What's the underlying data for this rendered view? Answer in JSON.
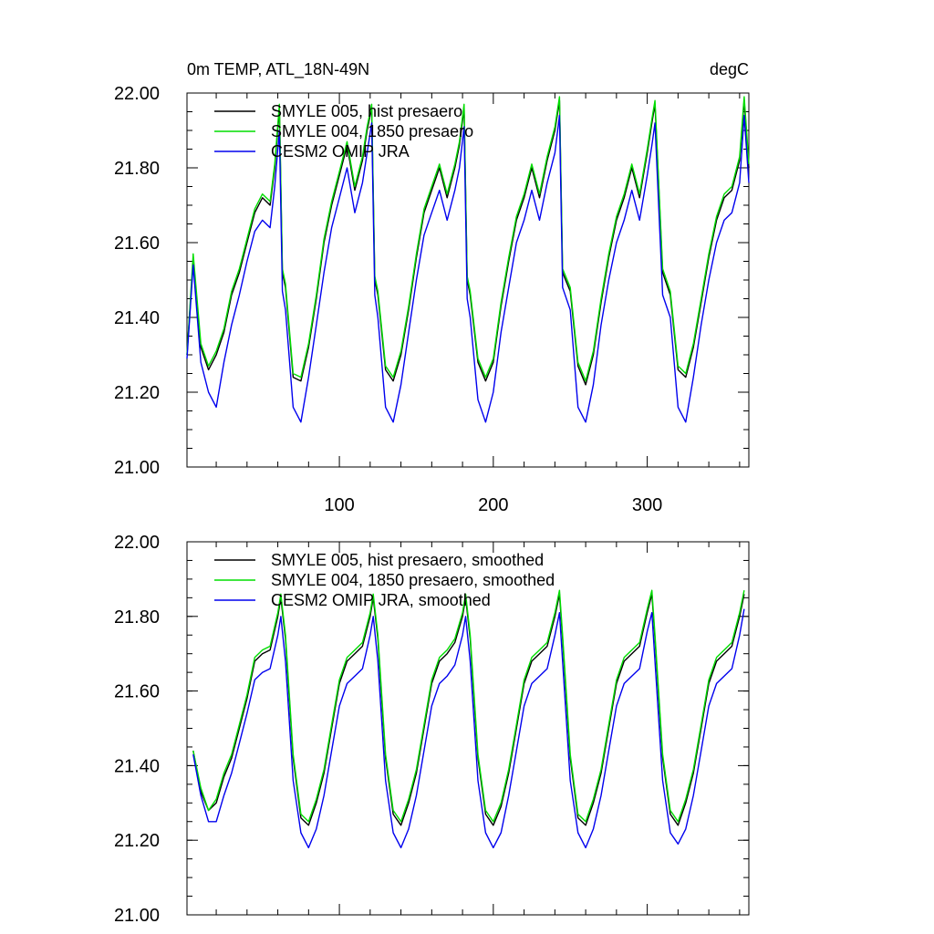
{
  "figure": {
    "title_left": "0m TEMP, ATL_18N-49N",
    "title_right": "degC"
  },
  "chart_data": [
    {
      "type": "line",
      "panel": "top",
      "title": "0m TEMP, ATL_18N-49N",
      "units": "degC",
      "xlim": [
        1,
        366
      ],
      "ylim": [
        21.0,
        22.0
      ],
      "x_ticks": [
        100,
        200,
        300
      ],
      "x_tick_labels": [
        "100",
        "200",
        "300"
      ],
      "y_ticks": [
        21.0,
        21.2,
        21.4,
        21.6,
        21.8,
        22.0
      ],
      "y_tick_labels": [
        "21.00",
        "21.20",
        "21.40",
        "21.60",
        "21.80",
        "22.00"
      ],
      "legend_position": "top-left",
      "x": [
        1,
        5,
        10,
        15,
        20,
        25,
        30,
        35,
        40,
        45,
        50,
        55,
        58,
        61,
        63,
        65,
        70,
        75,
        80,
        85,
        90,
        95,
        100,
        105,
        110,
        115,
        118,
        121,
        123,
        125,
        130,
        135,
        140,
        145,
        150,
        155,
        160,
        165,
        170,
        175,
        178,
        181,
        183,
        185,
        190,
        195,
        200,
        205,
        210,
        215,
        220,
        225,
        230,
        235,
        240,
        243,
        245,
        250,
        255,
        260,
        265,
        270,
        275,
        280,
        285,
        290,
        295,
        300,
        303,
        305,
        310,
        315,
        320,
        325,
        330,
        335,
        340,
        345,
        350,
        355,
        360,
        363,
        366
      ],
      "series": [
        {
          "name": "SMYLE 005, hist presaero",
          "color": "#000000",
          "values": [
            21.3,
            21.55,
            21.32,
            21.26,
            21.3,
            21.36,
            21.46,
            21.52,
            21.6,
            21.68,
            21.72,
            21.7,
            21.8,
            21.96,
            21.52,
            21.48,
            21.24,
            21.23,
            21.32,
            21.45,
            21.6,
            21.7,
            21.78,
            21.86,
            21.74,
            21.82,
            21.9,
            21.96,
            21.5,
            21.46,
            21.26,
            21.23,
            21.3,
            21.42,
            21.56,
            21.68,
            21.74,
            21.8,
            21.72,
            21.8,
            21.86,
            21.96,
            21.5,
            21.46,
            21.28,
            21.23,
            21.28,
            21.43,
            21.55,
            21.66,
            21.72,
            21.8,
            21.72,
            21.82,
            21.9,
            21.98,
            21.52,
            21.47,
            21.27,
            21.22,
            21.3,
            21.44,
            21.56,
            21.66,
            21.72,
            21.8,
            21.72,
            21.84,
            21.92,
            21.97,
            21.52,
            21.46,
            21.26,
            21.24,
            21.32,
            21.44,
            21.56,
            21.66,
            21.72,
            21.74,
            21.82,
            21.98,
            21.8
          ]
        },
        {
          "name": "SMYLE 004, 1850 presaero",
          "color": "#00dd00",
          "values": [
            21.3,
            21.57,
            21.33,
            21.27,
            21.31,
            21.37,
            21.47,
            21.53,
            21.61,
            21.69,
            21.73,
            21.71,
            21.81,
            21.97,
            21.53,
            21.49,
            21.25,
            21.24,
            21.33,
            21.46,
            21.61,
            21.71,
            21.79,
            21.87,
            21.75,
            21.83,
            21.91,
            21.97,
            21.51,
            21.47,
            21.27,
            21.24,
            21.31,
            21.43,
            21.57,
            21.69,
            21.75,
            21.81,
            21.73,
            21.81,
            21.87,
            21.97,
            21.51,
            21.47,
            21.29,
            21.24,
            21.29,
            21.44,
            21.56,
            21.67,
            21.73,
            21.81,
            21.73,
            21.83,
            21.91,
            21.99,
            21.53,
            21.48,
            21.28,
            21.23,
            21.31,
            21.45,
            21.57,
            21.67,
            21.73,
            21.81,
            21.73,
            21.85,
            21.93,
            21.98,
            21.53,
            21.47,
            21.27,
            21.25,
            21.33,
            21.45,
            21.57,
            21.67,
            21.73,
            21.75,
            21.83,
            21.99,
            21.81
          ]
        },
        {
          "name": "CESM2 OMIP JRA",
          "color": "#0000ee",
          "values": [
            21.29,
            21.54,
            21.28,
            21.2,
            21.16,
            21.28,
            21.38,
            21.46,
            21.55,
            21.63,
            21.66,
            21.64,
            21.75,
            21.9,
            21.47,
            21.42,
            21.16,
            21.12,
            21.24,
            21.38,
            21.52,
            21.64,
            21.72,
            21.8,
            21.68,
            21.76,
            21.84,
            21.92,
            21.46,
            21.4,
            21.16,
            21.12,
            21.22,
            21.36,
            21.5,
            21.62,
            21.68,
            21.74,
            21.66,
            21.74,
            21.8,
            21.91,
            21.45,
            21.4,
            21.18,
            21.12,
            21.2,
            21.36,
            21.48,
            21.6,
            21.66,
            21.74,
            21.66,
            21.76,
            21.84,
            21.94,
            21.48,
            21.42,
            21.16,
            21.12,
            21.22,
            21.38,
            21.5,
            21.6,
            21.66,
            21.74,
            21.66,
            21.78,
            21.86,
            21.92,
            21.46,
            21.4,
            21.16,
            21.12,
            21.24,
            21.38,
            21.5,
            21.6,
            21.66,
            21.68,
            21.76,
            21.94,
            21.76
          ]
        }
      ]
    },
    {
      "type": "line",
      "panel": "bottom",
      "xlim": [
        1,
        366
      ],
      "ylim": [
        21.0,
        22.0
      ],
      "y_ticks": [
        21.0,
        21.2,
        21.4,
        21.6,
        21.8,
        22.0
      ],
      "y_tick_labels": [
        "21.00",
        "21.20",
        "21.40",
        "21.60",
        "21.80",
        "22.00"
      ],
      "legend_position": "top-left",
      "x": [
        5,
        10,
        15,
        20,
        25,
        30,
        35,
        40,
        45,
        50,
        55,
        60,
        62,
        65,
        70,
        75,
        80,
        85,
        90,
        95,
        100,
        105,
        110,
        115,
        120,
        122,
        125,
        130,
        135,
        140,
        145,
        150,
        155,
        160,
        165,
        170,
        175,
        180,
        182,
        185,
        190,
        195,
        200,
        205,
        210,
        215,
        220,
        225,
        230,
        235,
        240,
        243,
        245,
        250,
        255,
        260,
        265,
        270,
        275,
        280,
        285,
        290,
        295,
        300,
        303,
        305,
        310,
        315,
        320,
        325,
        330,
        335,
        340,
        345,
        350,
        355,
        360,
        363
      ],
      "series": [
        {
          "name": "SMYLE 005, hist presaero, smoothed",
          "color": "#000000",
          "values": [
            21.44,
            21.33,
            21.28,
            21.3,
            21.37,
            21.42,
            21.5,
            21.58,
            21.68,
            21.7,
            21.71,
            21.8,
            21.85,
            21.74,
            21.42,
            21.26,
            21.24,
            21.3,
            21.38,
            21.5,
            21.62,
            21.68,
            21.7,
            21.72,
            21.8,
            21.85,
            21.74,
            21.42,
            21.27,
            21.24,
            21.3,
            21.38,
            21.5,
            21.62,
            21.68,
            21.7,
            21.73,
            21.8,
            21.85,
            21.74,
            21.42,
            21.27,
            21.24,
            21.29,
            21.38,
            21.5,
            21.62,
            21.68,
            21.7,
            21.72,
            21.8,
            21.86,
            21.74,
            21.42,
            21.26,
            21.24,
            21.3,
            21.38,
            21.5,
            21.62,
            21.68,
            21.7,
            21.72,
            21.81,
            21.86,
            21.74,
            21.42,
            21.27,
            21.24,
            21.3,
            21.38,
            21.5,
            21.62,
            21.68,
            21.7,
            21.72,
            21.8,
            21.86
          ]
        },
        {
          "name": "SMYLE 004, 1850 presaero, smoothed",
          "color": "#00dd00",
          "values": [
            21.44,
            21.34,
            21.28,
            21.31,
            21.38,
            21.43,
            21.51,
            21.59,
            21.69,
            21.71,
            21.72,
            21.81,
            21.86,
            21.75,
            21.43,
            21.27,
            21.25,
            21.31,
            21.39,
            21.51,
            21.63,
            21.69,
            21.71,
            21.73,
            21.81,
            21.86,
            21.75,
            21.43,
            21.28,
            21.25,
            21.31,
            21.39,
            21.51,
            21.63,
            21.69,
            21.71,
            21.74,
            21.81,
            21.86,
            21.75,
            21.43,
            21.28,
            21.25,
            21.3,
            21.39,
            21.51,
            21.63,
            21.69,
            21.71,
            21.73,
            21.81,
            21.87,
            21.75,
            21.43,
            21.27,
            21.25,
            21.31,
            21.39,
            21.51,
            21.63,
            21.69,
            21.71,
            21.73,
            21.82,
            21.87,
            21.75,
            21.43,
            21.28,
            21.25,
            21.31,
            21.39,
            21.51,
            21.63,
            21.69,
            21.71,
            21.73,
            21.81,
            21.87
          ]
        },
        {
          "name": "CESM2 OMIP JRA, smoothed",
          "color": "#0000ee",
          "values": [
            21.43,
            21.32,
            21.25,
            21.25,
            21.32,
            21.38,
            21.46,
            21.54,
            21.63,
            21.65,
            21.66,
            21.75,
            21.8,
            21.68,
            21.36,
            21.22,
            21.18,
            21.23,
            21.32,
            21.44,
            21.56,
            21.62,
            21.64,
            21.66,
            21.75,
            21.8,
            21.68,
            21.36,
            21.22,
            21.18,
            21.23,
            21.32,
            21.44,
            21.56,
            21.62,
            21.64,
            21.67,
            21.75,
            21.8,
            21.68,
            21.36,
            21.22,
            21.18,
            21.22,
            21.32,
            21.44,
            21.56,
            21.62,
            21.64,
            21.66,
            21.75,
            21.81,
            21.68,
            21.36,
            21.22,
            21.18,
            21.23,
            21.32,
            21.44,
            21.56,
            21.62,
            21.64,
            21.66,
            21.76,
            21.81,
            21.68,
            21.36,
            21.22,
            21.19,
            21.23,
            21.32,
            21.44,
            21.56,
            21.62,
            21.64,
            21.66,
            21.75,
            21.82
          ]
        }
      ]
    }
  ]
}
